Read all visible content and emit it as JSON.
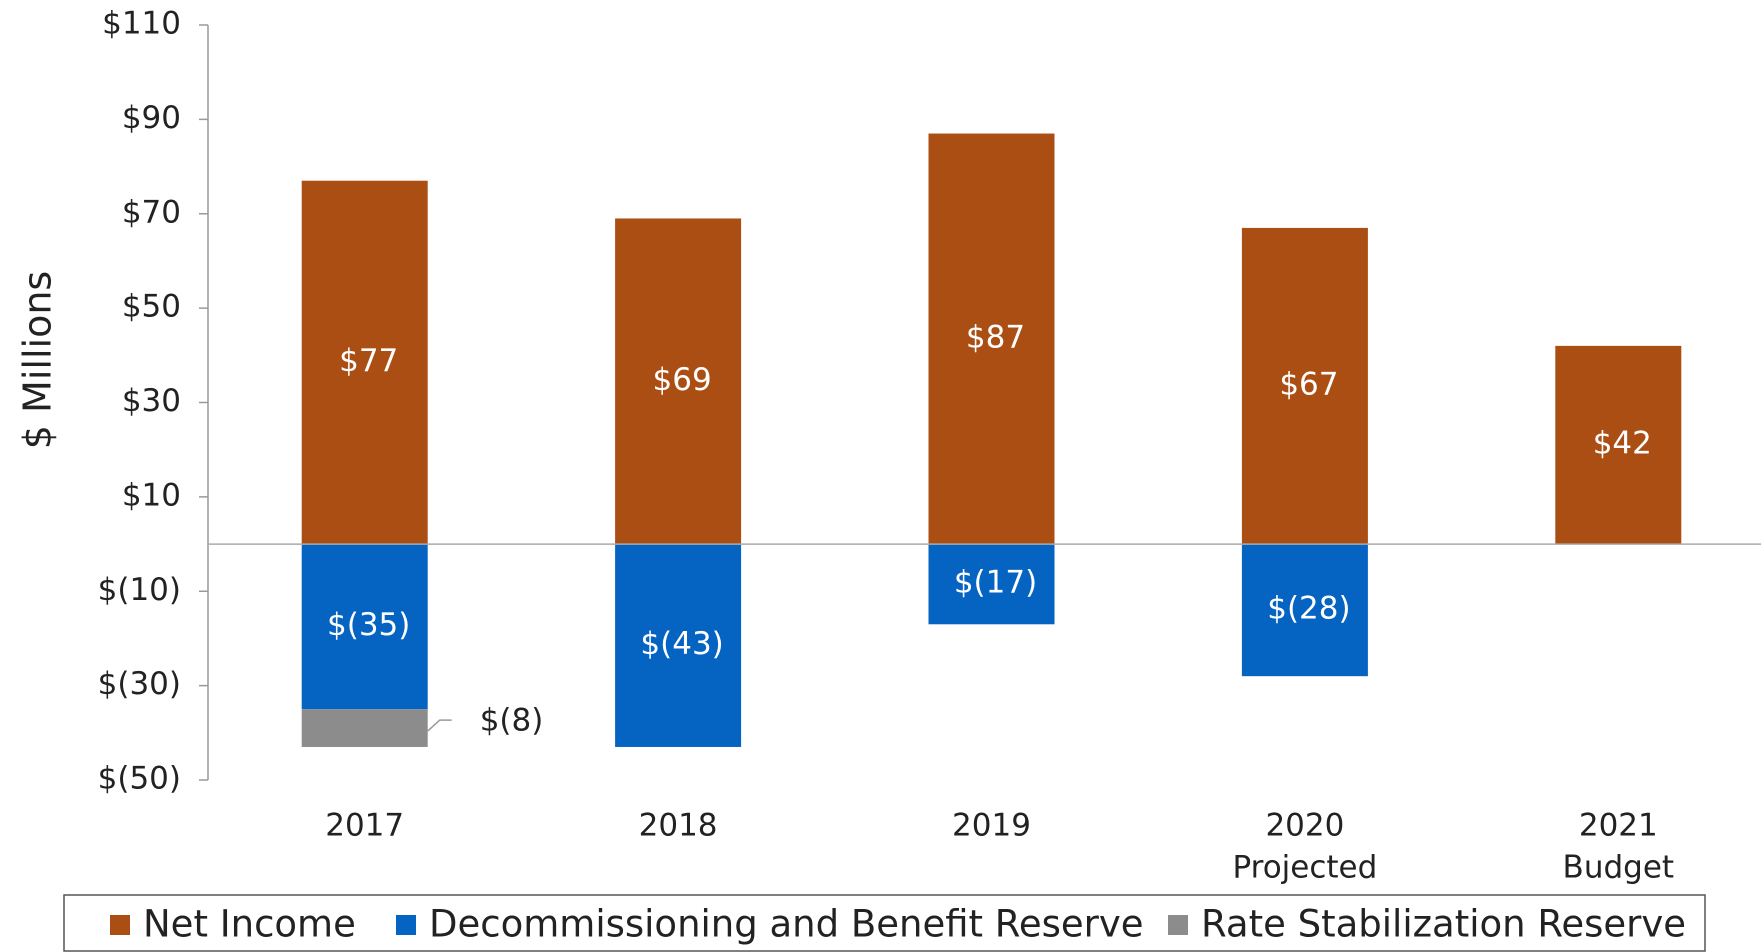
{
  "chart_data": {
    "type": "stacked-bar",
    "ylabel": "$ Millions",
    "categories": [
      "2017",
      "2018",
      "2019",
      "2020",
      "2021"
    ],
    "category_notes": [
      null,
      null,
      null,
      "Projected",
      "Budget"
    ],
    "series": [
      {
        "name": "Net Income",
        "color": "#ab4e14",
        "values": [
          77,
          69,
          87,
          67,
          42
        ],
        "value_labels": [
          "$77",
          "$69",
          "$87",
          "$67",
          "$42"
        ]
      },
      {
        "name": "Decommissioning and Benefit Reserve",
        "color": "#0563c1",
        "values": [
          -35,
          -43,
          -17,
          -28,
          null
        ],
        "value_labels": [
          "$(35)",
          "$(43)",
          "$(17)",
          "$(28)",
          null
        ]
      },
      {
        "name": "Rate Stabilization Reserve",
        "color": "#8c8c8c",
        "values": [
          -8,
          null,
          null,
          null,
          null
        ],
        "value_labels": [
          "$(8)",
          null,
          null,
          null,
          null
        ]
      }
    ],
    "ylim": [
      -50,
      110
    ],
    "yticks": [
      {
        "value": -50,
        "label": "$(50)"
      },
      {
        "value": -30,
        "label": "$(30)"
      },
      {
        "value": -10,
        "label": "$(10)"
      },
      {
        "value": 10,
        "label": "$10"
      },
      {
        "value": 30,
        "label": "$30"
      },
      {
        "value": 50,
        "label": "$50"
      },
      {
        "value": 70,
        "label": "$70"
      },
      {
        "value": 90,
        "label": "$90"
      },
      {
        "value": 110,
        "label": "$110"
      }
    ],
    "legend": "bottom"
  }
}
